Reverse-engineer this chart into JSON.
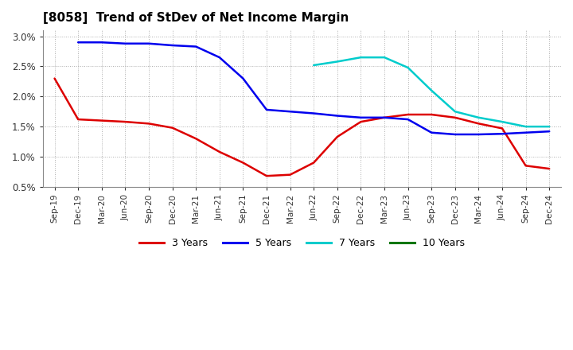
{
  "title": "[8058]  Trend of StDev of Net Income Margin",
  "background_color": "#ffffff",
  "plot_background": "#ffffff",
  "grid_color": "#999999",
  "x_labels": [
    "Sep-19",
    "Dec-19",
    "Mar-20",
    "Jun-20",
    "Sep-20",
    "Dec-20",
    "Mar-21",
    "Jun-21",
    "Sep-21",
    "Dec-21",
    "Mar-22",
    "Jun-22",
    "Sep-22",
    "Dec-22",
    "Mar-23",
    "Jun-23",
    "Sep-23",
    "Dec-23",
    "Mar-24",
    "Jun-24",
    "Sep-24",
    "Dec-24"
  ],
  "ylim": [
    0.005,
    0.031
  ],
  "yticks": [
    0.005,
    0.01,
    0.015,
    0.02,
    0.025,
    0.03
  ],
  "ytick_labels": [
    "0.5%",
    "1.0%",
    "1.5%",
    "2.0%",
    "2.5%",
    "3.0%"
  ],
  "series": {
    "3 Years": {
      "color": "#dd0000",
      "linewidth": 1.8,
      "values": [
        0.023,
        0.0162,
        0.016,
        0.0158,
        0.0155,
        0.0148,
        0.013,
        0.0108,
        0.009,
        0.0068,
        0.007,
        0.009,
        0.0133,
        0.0158,
        0.0165,
        0.017,
        0.017,
        0.0165,
        0.0155,
        0.0147,
        0.0085,
        0.008
      ]
    },
    "5 Years": {
      "color": "#0000ee",
      "linewidth": 1.8,
      "values": [
        null,
        0.029,
        0.029,
        0.0288,
        0.0288,
        0.0285,
        0.0283,
        0.0265,
        0.023,
        0.0178,
        0.0175,
        0.0172,
        0.0168,
        0.0165,
        0.0165,
        0.0162,
        0.014,
        0.0137,
        0.0137,
        0.0138,
        0.014,
        0.0142
      ]
    },
    "7 Years": {
      "color": "#00cccc",
      "linewidth": 1.8,
      "values": [
        null,
        null,
        null,
        null,
        null,
        null,
        null,
        null,
        null,
        null,
        null,
        0.0252,
        0.0258,
        0.0265,
        0.0265,
        0.0248,
        0.021,
        0.0175,
        0.0165,
        0.0158,
        0.015,
        0.015
      ]
    },
    "10 Years": {
      "color": "#007700",
      "linewidth": 1.8,
      "values": [
        null,
        null,
        null,
        null,
        null,
        null,
        null,
        null,
        null,
        null,
        null,
        null,
        null,
        null,
        null,
        null,
        null,
        null,
        null,
        null,
        null,
        null
      ]
    }
  },
  "legend": {
    "entries": [
      "3 Years",
      "5 Years",
      "7 Years",
      "10 Years"
    ],
    "colors": [
      "#dd0000",
      "#0000ee",
      "#00cccc",
      "#007700"
    ],
    "location": "lower center",
    "ncol": 4
  }
}
